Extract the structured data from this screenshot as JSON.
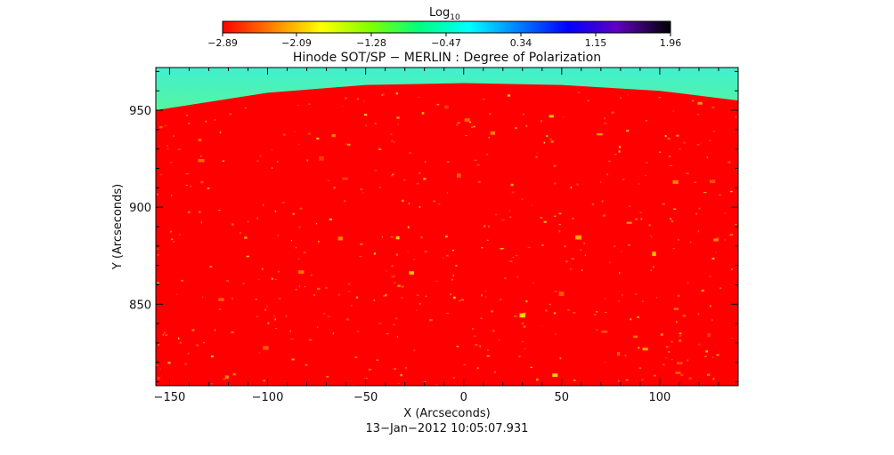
{
  "chart_data": {
    "type": "heatmap",
    "title": "Hinode SOT/SP − MERLIN : Degree of Polarization",
    "xlabel": "X (Arcseconds)",
    "ylabel": "Y (Arcseconds)",
    "xlim": [
      -157,
      140
    ],
    "ylim": [
      808,
      972
    ],
    "x_ticks": [
      -150,
      -100,
      -50,
      0,
      50,
      100
    ],
    "x_tick_labels": [
      "−150",
      "−100",
      "−50",
      "0",
      "50",
      "100"
    ],
    "y_ticks": [
      850,
      900,
      950
    ],
    "y_tick_labels": [
      "850",
      "900",
      "950"
    ],
    "colorbar": {
      "label_base": "Log",
      "label_sub": "10",
      "range": [
        -2.89,
        1.96
      ],
      "ticks": [
        -2.89,
        -2.09,
        -1.28,
        -0.47,
        0.34,
        1.15,
        1.96
      ],
      "tick_labels": [
        "−2.89",
        "−2.09",
        "−1.28",
        "−0.47",
        "0.34",
        "1.15",
        "1.96"
      ],
      "colors": [
        "#ff0000",
        "#ff8000",
        "#ffff00",
        "#80ff00",
        "#00ff80",
        "#00ffff",
        "#0080ff",
        "#0000ff",
        "#6000c0",
        "#000000"
      ]
    },
    "limb": {
      "description_note": "",
      "points": [
        [
          -157,
          950
        ],
        [
          -100,
          959
        ],
        [
          -50,
          963
        ],
        [
          0,
          964
        ],
        [
          50,
          963
        ],
        [
          100,
          960
        ],
        [
          140,
          955
        ]
      ]
    },
    "disk_value": -2.89,
    "offlimb_value_range": [
      -1.6,
      -0.6
    ],
    "footnote": "13−Jan−2012 10:05:07.931",
    "grid": false,
    "legend": "none"
  }
}
